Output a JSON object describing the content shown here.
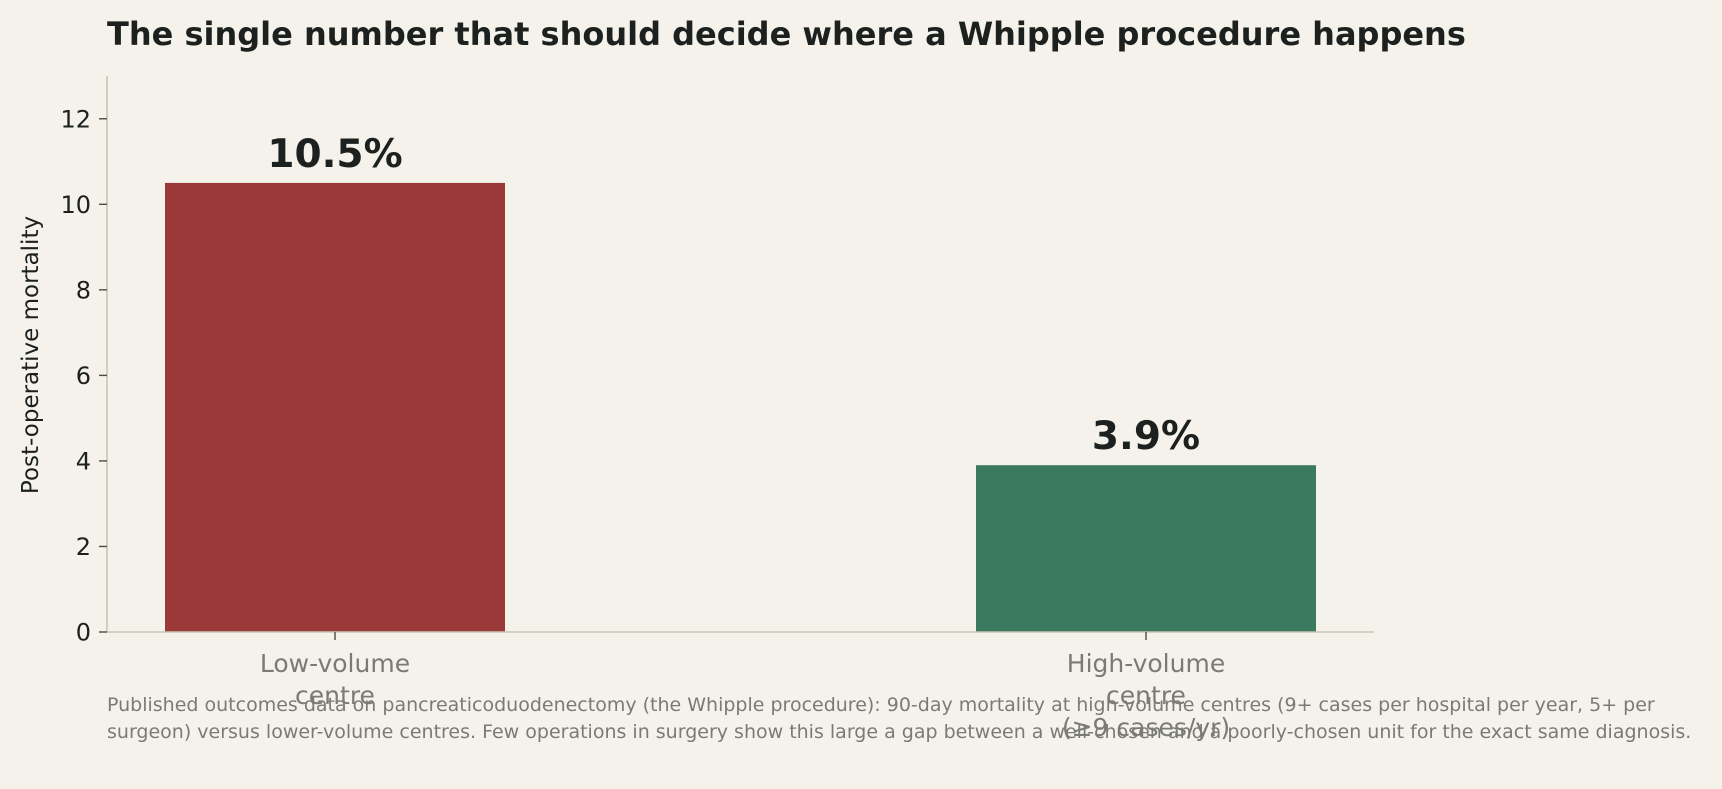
{
  "chart_data": {
    "type": "bar",
    "title": "The single number that should decide where a Whipple procedure happens",
    "ylabel": "Post-operative mortality",
    "xlabel": "",
    "ylim": [
      0,
      13
    ],
    "yticks": [
      0,
      2,
      4,
      6,
      8,
      10,
      12
    ],
    "grid": false,
    "categories": [
      [
        "Low-volume",
        "centre"
      ],
      [
        "High-volume",
        "centre",
        "(≥9 cases/yr)"
      ]
    ],
    "values": [
      10.5,
      3.9
    ],
    "value_labels": [
      "10.5%",
      "3.9%"
    ],
    "bar_colors": [
      "#9b3838",
      "#3c7a5f"
    ]
  },
  "caption": "Published outcomes data on pancreaticoduodenectomy (the Whipple procedure): 90-day mortality at high-volume centres (9+ cases per hospital per year, 5+ per surgeon) versus lower-volume centres. Few operations in surgery show this large a gap between a well-chosen and a poorly-chosen unit for the exact same diagnosis.",
  "colors": {
    "background": "#f4f2eb",
    "axis": "#c8c6b3",
    "text": "#1c211f",
    "muted_text": "#7a7b74"
  }
}
